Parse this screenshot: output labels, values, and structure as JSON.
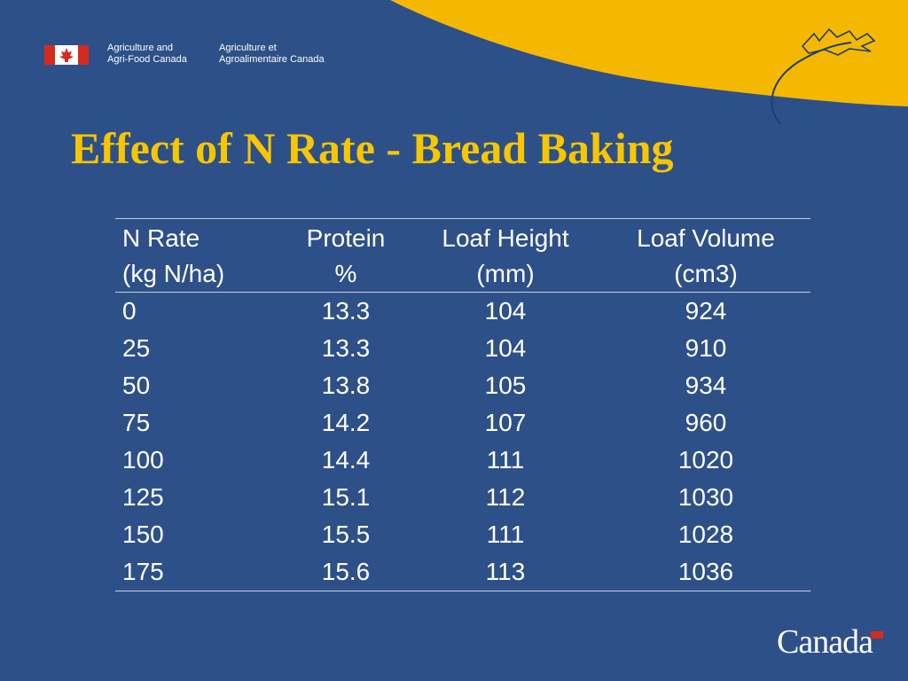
{
  "header": {
    "agency_en_line1": "Agriculture and",
    "agency_en_line2": "Agri-Food Canada",
    "agency_fr_line1": "Agriculture et",
    "agency_fr_line2": "Agroalimentaire Canada"
  },
  "title": "Effect of N Rate - Bread Baking",
  "table": {
    "headers": [
      {
        "line1": "N Rate",
        "line2": "(kg N/ha)"
      },
      {
        "line1": "Protein",
        "line2": "%"
      },
      {
        "line1": "Loaf Height",
        "line2": "(mm)"
      },
      {
        "line1": "Loaf Volume",
        "line2": "(cm3)"
      }
    ],
    "rows": [
      [
        "0",
        "13.3",
        "104",
        "924"
      ],
      [
        "25",
        "13.3",
        "104",
        "910"
      ],
      [
        "50",
        "13.8",
        "105",
        "934"
      ],
      [
        "75",
        "14.2",
        "107",
        "960"
      ],
      [
        "100",
        "14.4",
        "111",
        "1020"
      ],
      [
        "125",
        "15.1",
        "112",
        "1030"
      ],
      [
        "150",
        "15.5",
        "111",
        "1028"
      ],
      [
        "175",
        "15.6",
        "113",
        "1036"
      ]
    ]
  },
  "footer": {
    "wordmark": "Canada"
  },
  "colors": {
    "background": "#2e5088",
    "title": "#f7c600",
    "swoosh": "#f5b800",
    "text": "#ffffff",
    "flag_red": "#d52b1e"
  }
}
